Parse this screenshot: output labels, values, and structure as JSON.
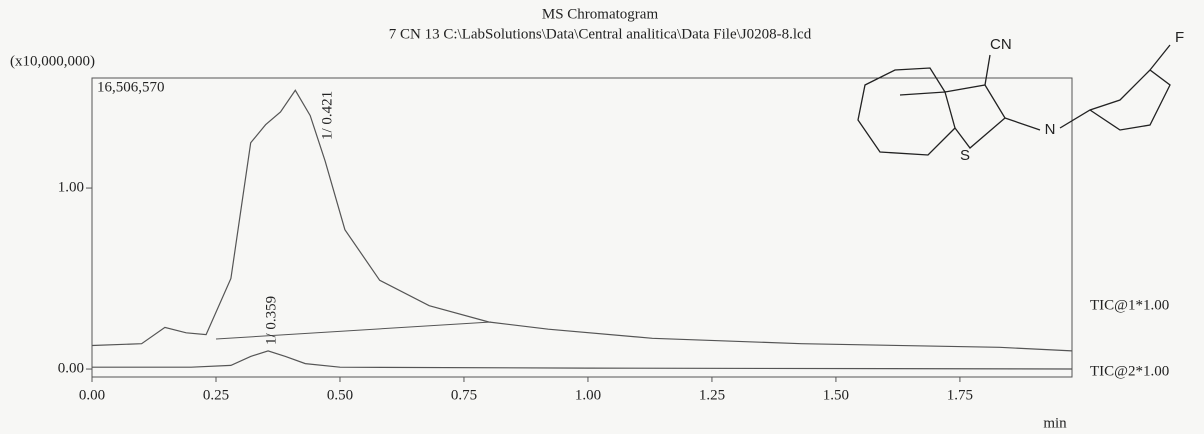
{
  "chart_data": {
    "type": "line",
    "title": "MS Chromatogram",
    "subtitle": "7 CN 13 C:\\LabSolutions\\Data\\Central analitica\\Data File\\J0208-8.lcd",
    "y_unit": "(x10,000,000)",
    "x_label": "min",
    "max_intensity": "16,506,570",
    "peak_labels": [
      "1/ 0.421",
      "1/ 0.359"
    ],
    "molecule_labels": [
      "CN",
      "N",
      "S",
      "F"
    ],
    "xlim": [
      0,
      1.976
    ],
    "ylim": [
      -0.044,
      1.608
    ],
    "xticks": [
      {
        "value": 0,
        "label": "0.00"
      },
      {
        "value": 0.25,
        "label": "0.25"
      },
      {
        "value": 0.5,
        "label": "0.50"
      },
      {
        "value": 0.75,
        "label": "0.75"
      },
      {
        "value": 1,
        "label": "1.00"
      },
      {
        "value": 1.25,
        "label": "1.25"
      },
      {
        "value": 1.5,
        "label": "1.50"
      },
      {
        "value": 1.75,
        "label": "1.75"
      }
    ],
    "yticks": [
      {
        "value": 0,
        "label": "0.00"
      },
      {
        "value": 1,
        "label": "1.00"
      }
    ],
    "series": [
      {
        "name": "TIC@1*1.00",
        "color": "#555555",
        "x": [
          0,
          0.1,
          0.147,
          0.19,
          0.23,
          0.28,
          0.32,
          0.35,
          0.38,
          0.41,
          0.44,
          0.47,
          0.51,
          0.58,
          0.68,
          0.8,
          0.92,
          1.13,
          1.43,
          1.83,
          1.976
        ],
        "values": [
          0.13,
          0.14,
          0.23,
          0.2,
          0.19,
          0.5,
          1.25,
          1.35,
          1.42,
          1.54,
          1.4,
          1.15,
          0.77,
          0.49,
          0.35,
          0.26,
          0.22,
          0.17,
          0.14,
          0.12,
          0.1
        ]
      },
      {
        "name": "TIC@2*1.00",
        "color": "#555555",
        "x": [
          0,
          0.2,
          0.28,
          0.32,
          0.355,
          0.39,
          0.43,
          0.5,
          1,
          1.976
        ],
        "values": [
          0.01,
          0.01,
          0.02,
          0.07,
          0.1,
          0.07,
          0.03,
          0.01,
          0.005,
          0.0
        ]
      }
    ]
  }
}
